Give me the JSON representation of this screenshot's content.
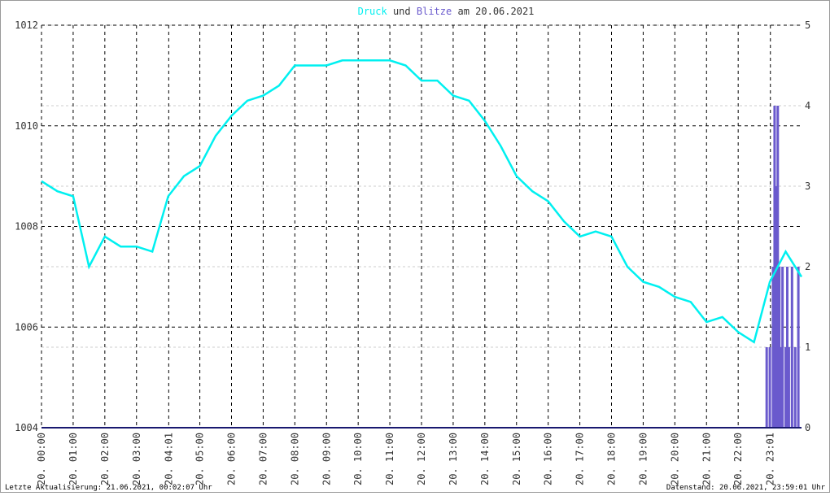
{
  "chart_data": {
    "type": "line",
    "title_connector": "und",
    "title_date": "am 20.06.2021",
    "footer_left": "Letzte Aktualisierung: 21.06.2021, 00:02:07 Uhr",
    "footer_right": "Datenstand: 20.06.2021, 23:59:01 Uhr",
    "xlim": [
      0,
      24
    ],
    "xticks": [
      {
        "value": 0,
        "label": "20. 00:00"
      },
      {
        "value": 1,
        "label": "20. 01:00"
      },
      {
        "value": 2,
        "label": "20. 02:00"
      },
      {
        "value": 3,
        "label": "20. 03:00"
      },
      {
        "value": 4.017,
        "label": "20. 04:01"
      },
      {
        "value": 5,
        "label": "20. 05:00"
      },
      {
        "value": 6,
        "label": "20. 06:00"
      },
      {
        "value": 7,
        "label": "20. 07:00"
      },
      {
        "value": 8,
        "label": "20. 08:00"
      },
      {
        "value": 9,
        "label": "20. 09:00"
      },
      {
        "value": 10,
        "label": "20. 10:00"
      },
      {
        "value": 11,
        "label": "20. 11:00"
      },
      {
        "value": 12,
        "label": "20. 12:00"
      },
      {
        "value": 13,
        "label": "20. 13:00"
      },
      {
        "value": 14,
        "label": "20. 14:00"
      },
      {
        "value": 15,
        "label": "20. 15:00"
      },
      {
        "value": 16,
        "label": "20. 16:00"
      },
      {
        "value": 17,
        "label": "20. 17:00"
      },
      {
        "value": 18,
        "label": "20. 18:00"
      },
      {
        "value": 19,
        "label": "20. 19:00"
      },
      {
        "value": 20,
        "label": "20. 20:00"
      },
      {
        "value": 21,
        "label": "20. 21:00"
      },
      {
        "value": 22,
        "label": "20. 22:00"
      },
      {
        "value": 23.017,
        "label": "20. 23:01"
      }
    ],
    "ylim": [
      1004,
      1012
    ],
    "yticks": [
      1004,
      1006,
      1008,
      1010,
      1012
    ],
    "y2lim": [
      0,
      5
    ],
    "y2ticks": [
      0,
      1,
      2,
      3,
      4,
      5
    ],
    "grid": true,
    "series": [
      {
        "name": "Druck",
        "color": "#00f0f0",
        "type": "line",
        "x": [
          0,
          0.5,
          1,
          1.5,
          2,
          2.5,
          3,
          3.5,
          4,
          4.5,
          5,
          5.5,
          6,
          6.5,
          7,
          7.5,
          8,
          8.5,
          9,
          9.5,
          10,
          10.5,
          11,
          11.5,
          12,
          12.5,
          13,
          13.5,
          14,
          14.5,
          15,
          15.5,
          16,
          16.5,
          17,
          17.5,
          18,
          18.5,
          19,
          19.5,
          20,
          20.5,
          21,
          21.5,
          22,
          22.5,
          23,
          23.5,
          24
        ],
        "values": [
          1008.9,
          1008.7,
          1008.6,
          1007.2,
          1007.8,
          1007.6,
          1007.6,
          1007.5,
          1008.6,
          1009.0,
          1009.2,
          1009.8,
          1010.2,
          1010.5,
          1010.6,
          1010.8,
          1011.2,
          1011.2,
          1011.2,
          1011.3,
          1011.3,
          1011.3,
          1011.3,
          1011.2,
          1010.9,
          1010.9,
          1010.6,
          1010.5,
          1010.1,
          1009.6,
          1009.0,
          1008.7,
          1008.5,
          1008.1,
          1007.8,
          1007.9,
          1007.8,
          1007.2,
          1006.9,
          1006.8,
          1006.6,
          1006.5,
          1006.1,
          1006.2,
          1005.9,
          1005.7,
          1006.9,
          1007.5,
          1007.0
        ]
      },
      {
        "name": "Blitze",
        "color": "#6a5acd",
        "type": "bar",
        "axis": "y2",
        "x": [
          22.9,
          23.0,
          23.1,
          23.15,
          23.2,
          23.25,
          23.3,
          23.35,
          23.4,
          23.5,
          23.55,
          23.6,
          23.7,
          23.8,
          23.9
        ],
        "values": [
          1,
          1,
          2,
          4,
          3,
          4,
          2,
          1,
          2,
          1,
          2,
          1,
          2,
          1,
          2
        ]
      }
    ]
  }
}
